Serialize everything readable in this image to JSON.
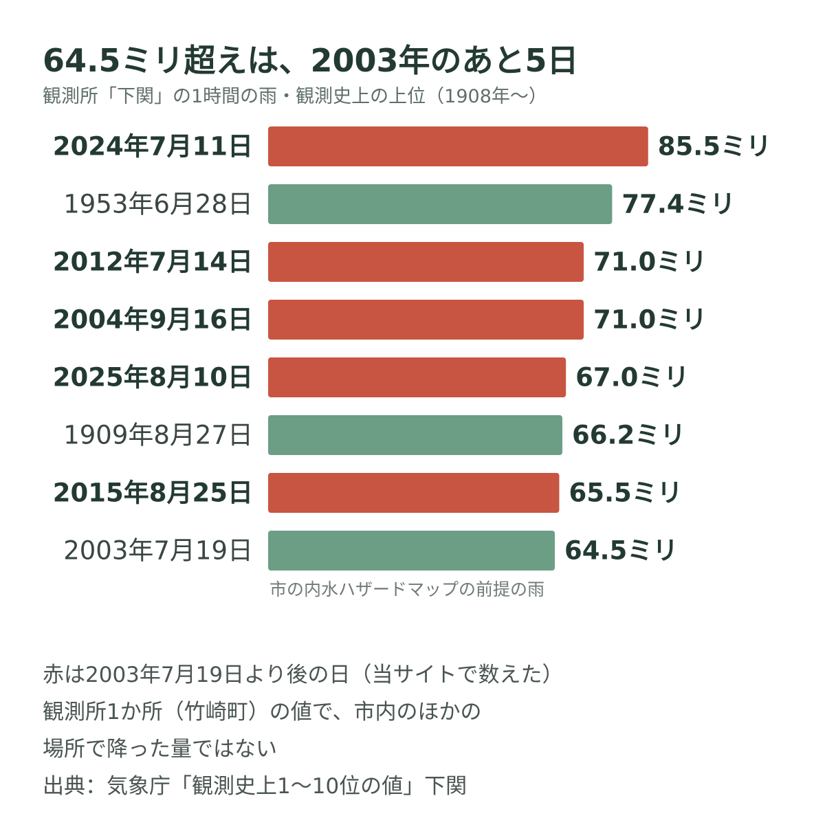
{
  "title": "64.5ミリ超えは、2003年のあと5日",
  "subtitle": "観測所「下関」の1時間の雨・観測史上の上位（1908年〜）",
  "colors": {
    "after_2003": "#c85541",
    "other": "#6c9e86",
    "text_dark": "#233a33",
    "text_muted": "#5f6f6a"
  },
  "chart_data": {
    "type": "bar",
    "orientation": "horizontal",
    "unit": "ミリ",
    "categories": [
      "2024年7月11日",
      "1953年6月28日",
      "2012年7月14日",
      "2004年9月16日",
      "2025年8月10日",
      "1909年8月27日",
      "2015年8月25日",
      "2003年7月19日"
    ],
    "values": [
      85.5,
      77.4,
      71.0,
      71.0,
      67.0,
      66.2,
      65.5,
      64.5
    ],
    "value_labels": [
      "85.5ミリ",
      "77.4ミリ",
      "71.0ミリ",
      "71.0ミリ",
      "67.0ミリ",
      "66.2ミリ",
      "65.5ミリ",
      "64.5ミリ"
    ],
    "after_2003": [
      true,
      false,
      true,
      true,
      true,
      false,
      true,
      false
    ],
    "annotation": "市の内水ハザードマップの前提の雨"
  },
  "notes": [
    "赤は2003年7月19日より後の日（当サイトで数えた）",
    "観測所1か所（竹崎町）の値で、市内のほかの",
    "場所で降った量ではない",
    "出典：気象庁「観測史上1〜10位の値」下関"
  ]
}
